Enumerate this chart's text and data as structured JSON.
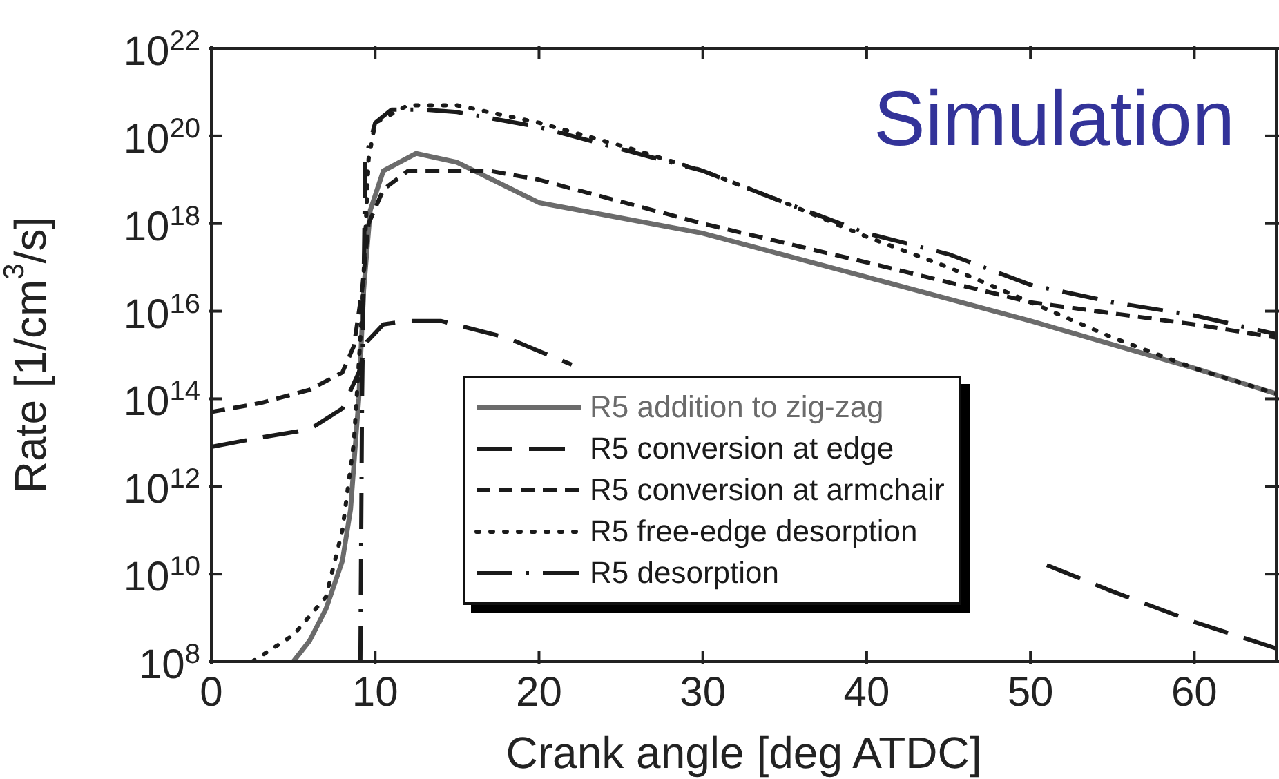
{
  "chart_data": {
    "type": "line",
    "xlabel": "Crank angle [deg ATDC]",
    "ylabel": "Rate [1/cm$^{3}$/s]",
    "annotations": [
      "Simulation"
    ],
    "log": "y",
    "grid": false,
    "legend": "bottom",
    "marker": "none",
    "xlim": [
      0,
      65
    ],
    "xticks": [
      0,
      10,
      20,
      30,
      40,
      50,
      60
    ],
    "ylim": [
      100000000.0,
      1e+22
    ],
    "yticks": [
      {
        "value": 100000000.0,
        "label": "10$^{8}$"
      },
      {
        "value": 10000000000.0,
        "label": "10$^{10}$"
      },
      {
        "value": 1000000000000.0,
        "label": "10$^{12}$"
      },
      {
        "value": 100000000000000.0,
        "label": "10$^{14}$"
      },
      {
        "value": 1e+16,
        "label": "10$^{16}$"
      },
      {
        "value": 1e+18,
        "label": "10$^{18}$"
      },
      {
        "value": 1e+20,
        "label": "10$^{20}$"
      },
      {
        "value": 1e+22,
        "label": "10$^{22}$"
      }
    ],
    "series": [
      {
        "name": "R5 addition to zig-zag",
        "color": "#6b6b6b",
        "line_style": "solid",
        "x": [
          5,
          6,
          7,
          8,
          8.5,
          9,
          9.3,
          9.7,
          10.5,
          12.5,
          15,
          20,
          30,
          40,
          50,
          60,
          65
        ],
        "values": [
          100000000.0,
          300000000.0,
          1600000000.0,
          20000000000.0,
          300000000000.0,
          100000000000000.0,
          3e+16,
          2e+18,
          1.6e+19,
          4e+19,
          2.5e+19,
          3e+18,
          6e+17,
          6e+16,
          6000000000000000.0,
          500000000000000.0,
          130000000000000.0
        ]
      },
      {
        "name": "R5 conversion at edge",
        "color": "#1a1a1a",
        "line_style": "longdash",
        "x": [
          0,
          3,
          6,
          8,
          9,
          9.5,
          10.5,
          12,
          14,
          18,
          22,
          30,
          40,
          51,
          55,
          60,
          65
        ],
        "values": [
          8000000000000.0,
          13000000000000.0,
          20000000000000.0,
          60000000000000.0,
          400000000000000.0,
          2000000000000000.0,
          5000000000000000.0,
          6000000000000000.0,
          6000000000000000.0,
          2500000000000000.0,
          600000000000000.0,
          null,
          null,
          16000000000.0,
          4000000000.0,
          800000000.0,
          200000000.0
        ]
      },
      {
        "name": "R5 conversion at armchair",
        "color": "#1a1a1a",
        "line_style": "dashed",
        "x": [
          0,
          3,
          6,
          8,
          8.7,
          9.2,
          9.6,
          10.5,
          12,
          17,
          20,
          30,
          40,
          50,
          60,
          65
        ],
        "values": [
          50000000000000.0,
          80000000000000.0,
          160000000000000.0,
          400000000000000.0,
          1600000000000000.0,
          3e+16,
          1e+18,
          6e+18,
          1.6e+19,
          1.6e+19,
          1e+19,
          1e+18,
          1.3e+17,
          1.6e+16,
          5000000000000000.0,
          2500000000000000.0
        ]
      },
      {
        "name": "R5 free-edge desorption",
        "color": "#1a1a1a",
        "line_style": "dotted",
        "x": [
          2.5,
          5,
          7,
          8,
          8.7,
          9.2,
          9.6,
          10,
          12,
          15,
          20,
          25,
          30,
          35,
          40,
          45,
          50,
          55,
          60,
          65
        ],
        "values": [
          100000000.0,
          400000000.0,
          3000000000.0,
          100000000000.0,
          10000000000000.0,
          1e+16,
          3e+19,
          2e+20,
          5e+20,
          5e+20,
          2e+20,
          6e+19,
          1.6e+19,
          3e+18,
          5e+17,
          1e+17,
          1.6e+16,
          2500000000000000.0,
          500000000000000.0,
          130000000000000.0
        ]
      },
      {
        "name": "R5 desorption",
        "color": "#1a1a1a",
        "line_style": "dashdot",
        "x": [
          9.1,
          9.2,
          9.4,
          10,
          11,
          13,
          15,
          20,
          25,
          30,
          35,
          40,
          45,
          50,
          55,
          60,
          65
        ],
        "values": [
          100000000.0,
          100000000000000.0,
          3e+19,
          2e+20,
          4e+20,
          4e+20,
          3.5e+20,
          1.6e+20,
          5e+19,
          1.6e+19,
          3e+18,
          6e+17,
          2e+17,
          4e+16,
          1.6e+16,
          8000000000000000.0,
          3000000000000000.0
        ]
      }
    ]
  }
}
